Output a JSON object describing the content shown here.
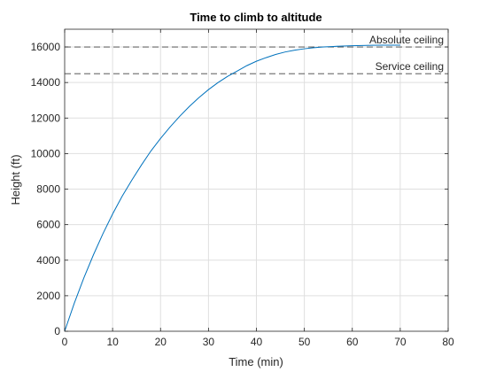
{
  "chart_data": {
    "type": "line",
    "title": "Time to climb to altitude",
    "xlabel": "Time (min)",
    "ylabel": "Height (ft)",
    "xlim": [
      0,
      80
    ],
    "ylim": [
      0,
      17000
    ],
    "xticks": [
      0,
      10,
      20,
      30,
      40,
      50,
      60,
      70,
      80
    ],
    "yticks": [
      0,
      2000,
      4000,
      6000,
      8000,
      10000,
      12000,
      14000,
      16000
    ],
    "grid": true,
    "series": [
      {
        "color": "#0072BD",
        "x": [
          0,
          2,
          4,
          6,
          8,
          10,
          12,
          14,
          16,
          18,
          20,
          22,
          24,
          26,
          28,
          30,
          32,
          34,
          36,
          38,
          40,
          42,
          44,
          46,
          48,
          50,
          52,
          54,
          56,
          58,
          60,
          62,
          64,
          66,
          68,
          70
        ],
        "y": [
          0,
          1575,
          3000,
          4300,
          5500,
          6600,
          7600,
          8500,
          9350,
          10150,
          10850,
          11500,
          12100,
          12650,
          13150,
          13600,
          14000,
          14350,
          14650,
          14950,
          15200,
          15400,
          15580,
          15720,
          15820,
          15900,
          15960,
          16000,
          16030,
          16055,
          16070,
          16085,
          16095,
          16100,
          16100,
          16100
        ]
      }
    ],
    "reference_lines": [
      {
        "label": "Absolute ceiling",
        "y": 16000,
        "style": "dashed",
        "color": "#404040"
      },
      {
        "label": "Service ceiling",
        "y": 14500,
        "style": "dashed",
        "color": "#404040"
      }
    ]
  }
}
